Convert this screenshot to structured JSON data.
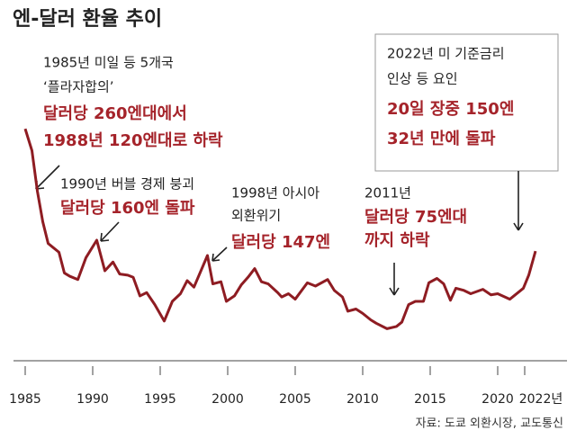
{
  "chart_data": {
    "type": "line",
    "title": "엔-달러 환율 추이",
    "source": "자료: 도쿄 외환시장, 교도통신",
    "x": [
      1985.0,
      1985.5,
      1985.9,
      1986.3,
      1986.7,
      1987.0,
      1987.5,
      1987.9,
      1988.3,
      1988.9,
      1989.5,
      1990.3,
      1990.9,
      1991.5,
      1992.0,
      1992.6,
      1993.0,
      1993.5,
      1994.0,
      1994.6,
      1995.3,
      1995.9,
      1996.5,
      1997.0,
      1997.5,
      1998.5,
      1998.9,
      1999.5,
      1999.9,
      2000.5,
      2001.0,
      2001.5,
      2002.0,
      2002.5,
      2003.0,
      2003.7,
      2004.0,
      2004.5,
      2005.0,
      2005.9,
      2006.5,
      2007.4,
      2007.9,
      2008.5,
      2008.9,
      2009.5,
      2010.0,
      2010.6,
      2011.0,
      2011.8,
      2012.5,
      2012.9,
      2013.4,
      2013.9,
      2014.5,
      2014.9,
      2015.5,
      2016.0,
      2016.5,
      2016.9,
      2017.5,
      2018.0,
      2018.9,
      2019.5,
      2020.0,
      2020.9,
      2021.5,
      2021.9,
      2022.3,
      2022.8
    ],
    "series": [
      {
        "color": "#8e1c22",
        "values": [
          260,
          240,
          203,
          175,
          155,
          152,
          147,
          128,
          125,
          122,
          142,
          158,
          130,
          138,
          127,
          126,
          124,
          107,
          110,
          99,
          84,
          102,
          109,
          121,
          115,
          144,
          118,
          120,
          102,
          107,
          117,
          124,
          132,
          120,
          118,
          110,
          106,
          109,
          104,
          119,
          116,
          122,
          112,
          106,
          93,
          95,
          91,
          85,
          82,
          77,
          79,
          83,
          99,
          102,
          102,
          119,
          123,
          118,
          103,
          114,
          112,
          109,
          113,
          108,
          109,
          104,
          110,
          114,
          126,
          148
        ]
      }
    ],
    "xlim": [
      1984.8,
      2023
    ],
    "ylim": [
      60,
      270
    ],
    "xticks": [
      1985,
      1990,
      1995,
      2000,
      2005,
      2010,
      2015,
      2020,
      {
        "value": 2022,
        "label": "2022년"
      }
    ],
    "annotations": [
      {
        "lines": [
          "1985년 미일 등 5개국",
          "‘플라자합의’"
        ],
        "emphasis": [
          "달러당 260엔대에서",
          "1988년 120엔대로 하락"
        ]
      },
      {
        "lines": [
          "1990년 버블 경제 붕괴"
        ],
        "emphasis": [
          "달러당 160엔 돌파"
        ]
      },
      {
        "lines": [
          "1998년 아시아",
          "외환위기"
        ],
        "emphasis": [
          "달러당 147엔"
        ]
      },
      {
        "lines": [
          "2011년"
        ],
        "emphasis": [
          "달러당 75엔대",
          "까지 하락"
        ]
      },
      {
        "lines": [
          "2022년 미 기준금리",
          "인상 등 요인"
        ],
        "emphasis": [
          "20일 장중 150엔",
          "32년 만에 돌파"
        ]
      }
    ]
  }
}
